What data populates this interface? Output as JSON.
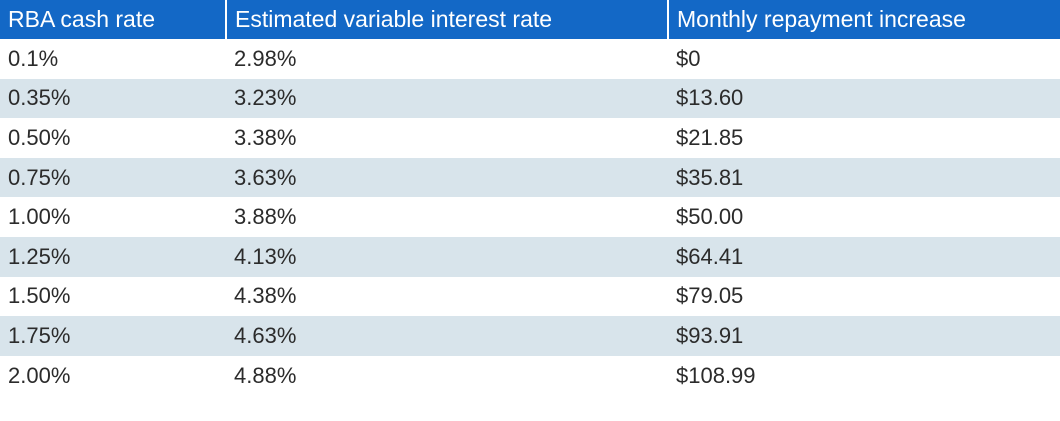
{
  "table": {
    "headers": [
      "RBA cash rate",
      "Estimated variable interest rate",
      "Monthly repayment increase"
    ],
    "rows": [
      [
        "0.1%",
        "2.98%",
        "$0"
      ],
      [
        "0.35%",
        "3.23%",
        "$13.60"
      ],
      [
        "0.50%",
        "3.38%",
        "$21.85"
      ],
      [
        "0.75%",
        "3.63%",
        "$35.81"
      ],
      [
        "1.00%",
        "3.88%",
        "$50.00"
      ],
      [
        "1.25%",
        "4.13%",
        "$64.41"
      ],
      [
        "1.50%",
        "4.38%",
        "$79.05"
      ],
      [
        "1.75%",
        "4.63%",
        "$93.91"
      ],
      [
        "2.00%",
        "4.88%",
        "$108.99"
      ]
    ]
  },
  "colors": {
    "header_bg": "#1368c6",
    "header_text": "#ffffff",
    "stripe_bg": "#d8e4eb",
    "cell_text": "#2b2b2b"
  }
}
